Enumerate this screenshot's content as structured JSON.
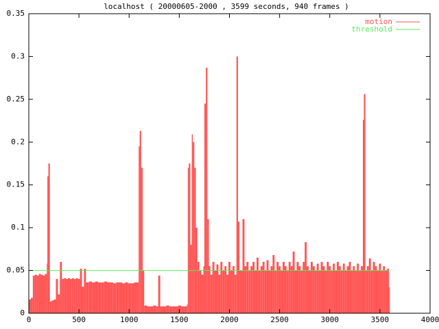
{
  "chart_data": {
    "type": "impulse",
    "title": "localhost ( 20000605-2000 , 3599 seconds, 940 frames )",
    "xlim": [
      0,
      4000
    ],
    "xticks": [
      0,
      500,
      1000,
      1500,
      2000,
      2500,
      3000,
      3500,
      4000
    ],
    "ylim": [
      0,
      0.35
    ],
    "yticks": [
      0,
      0.05,
      0.1,
      0.15,
      0.2,
      0.25,
      0.3,
      0.35
    ],
    "legend": "top-right",
    "series": [
      {
        "name": "motion",
        "color": "#ff5555",
        "style": "impulses",
        "x": [
          0,
          20,
          40,
          60,
          80,
          100,
          120,
          140,
          160,
          180,
          185,
          195,
          210,
          230,
          250,
          270,
          290,
          310,
          330,
          350,
          370,
          390,
          410,
          430,
          450,
          470,
          490,
          510,
          530,
          550,
          570,
          600,
          630,
          660,
          690,
          720,
          750,
          780,
          810,
          840,
          870,
          900,
          930,
          960,
          990,
          1020,
          1050,
          1080,
          1095,
          1105,
          1120,
          1135,
          1150,
          1180,
          1210,
          1240,
          1270,
          1290,
          1310,
          1340,
          1370,
          1400,
          1430,
          1460,
          1490,
          1520,
          1550,
          1575,
          1585,
          1595,
          1610,
          1625,
          1635,
          1650,
          1665,
          1680,
          1700,
          1720,
          1740,
          1750,
          1765,
          1780,
          1795,
          1810,
          1830,
          1850,
          1870,
          1890,
          1910,
          1930,
          1950,
          1970,
          1990,
          2010,
          2030,
          2050,
          2070,
          2085,
          2100,
          2130,
          2150,
          2170,
          2190,
          2210,
          2230,
          2250,
          2270,
          2290,
          2310,
          2330,
          2350,
          2370,
          2390,
          2410,
          2430,
          2450,
          2470,
          2490,
          2510,
          2530,
          2550,
          2570,
          2590,
          2610,
          2630,
          2650,
          2670,
          2690,
          2710,
          2730,
          2750,
          2770,
          2790,
          2810,
          2830,
          2850,
          2870,
          2890,
          2910,
          2930,
          2950,
          2970,
          2990,
          3010,
          3030,
          3050,
          3070,
          3090,
          3110,
          3130,
          3150,
          3170,
          3190,
          3210,
          3230,
          3250,
          3270,
          3290,
          3310,
          3330,
          3340,
          3355,
          3370,
          3390,
          3410,
          3430,
          3450,
          3470,
          3490,
          3510,
          3530,
          3550,
          3570,
          3590
        ],
        "values": [
          0.016,
          0.018,
          0.044,
          0.045,
          0.044,
          0.046,
          0.045,
          0.044,
          0.046,
          0.058,
          0.16,
          0.175,
          0.014,
          0.015,
          0.016,
          0.04,
          0.022,
          0.06,
          0.04,
          0.041,
          0.04,
          0.041,
          0.04,
          0.041,
          0.04,
          0.041,
          0.04,
          0.052,
          0.031,
          0.052,
          0.036,
          0.037,
          0.036,
          0.037,
          0.036,
          0.036,
          0.037,
          0.036,
          0.036,
          0.035,
          0.036,
          0.036,
          0.035,
          0.036,
          0.035,
          0.035,
          0.036,
          0.036,
          0.195,
          0.213,
          0.17,
          0.05,
          0.009,
          0.008,
          0.008,
          0.009,
          0.008,
          0.044,
          0.008,
          0.008,
          0.009,
          0.008,
          0.008,
          0.008,
          0.009,
          0.008,
          0.008,
          0.01,
          0.17,
          0.175,
          0.08,
          0.209,
          0.2,
          0.17,
          0.1,
          0.06,
          0.05,
          0.045,
          0.055,
          0.245,
          0.287,
          0.11,
          0.055,
          0.045,
          0.06,
          0.05,
          0.057,
          0.045,
          0.06,
          0.05,
          0.055,
          0.045,
          0.06,
          0.05,
          0.055,
          0.045,
          0.3,
          0.107,
          0.05,
          0.11,
          0.055,
          0.06,
          0.05,
          0.055,
          0.06,
          0.05,
          0.065,
          0.05,
          0.055,
          0.06,
          0.05,
          0.062,
          0.05,
          0.055,
          0.068,
          0.05,
          0.06,
          0.055,
          0.05,
          0.06,
          0.055,
          0.05,
          0.06,
          0.055,
          0.072,
          0.05,
          0.06,
          0.055,
          0.05,
          0.06,
          0.083,
          0.055,
          0.05,
          0.06,
          0.055,
          0.05,
          0.058,
          0.05,
          0.06,
          0.055,
          0.05,
          0.06,
          0.055,
          0.05,
          0.058,
          0.05,
          0.06,
          0.055,
          0.05,
          0.058,
          0.05,
          0.055,
          0.06,
          0.05,
          0.055,
          0.05,
          0.058,
          0.05,
          0.055,
          0.226,
          0.256,
          0.05,
          0.055,
          0.064,
          0.05,
          0.06,
          0.055,
          0.05,
          0.058,
          0.05,
          0.055,
          0.05,
          0.052,
          0.03
        ]
      },
      {
        "name": "threshold",
        "color": "#55ee55",
        "style": "lines",
        "x": [
          0,
          3599
        ],
        "values": [
          0.05,
          0.05
        ]
      }
    ]
  }
}
